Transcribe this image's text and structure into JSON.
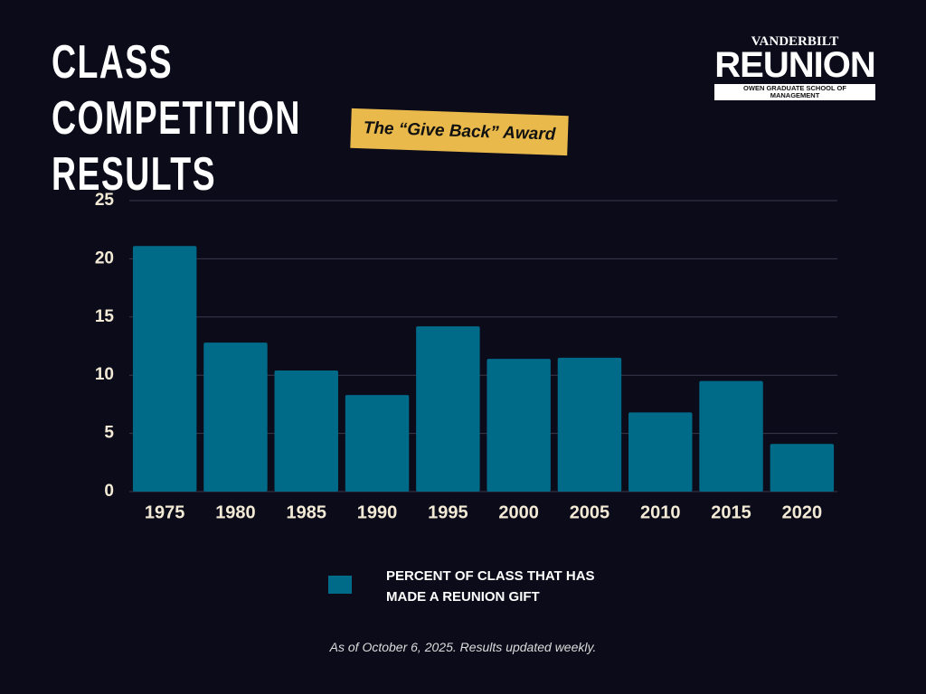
{
  "chart_data": {
    "type": "bar",
    "title": "CLASS COMPETITION RESULTS",
    "subtitle": "The “Give Back” Award",
    "note": "As of October 6, 2025. Results updated weekly.",
    "categories": [
      "1975",
      "1980",
      "1985",
      "1990",
      "1995",
      "2000",
      "2005",
      "2010",
      "2015",
      "2020"
    ],
    "series": [
      {
        "name": "PERCENT OF CLASS THAT HAS MADE A REUNION GIFT",
        "color": "#006a89",
        "values": [
          21.1,
          12.8,
          10.4,
          8.3,
          14.2,
          11.4,
          11.5,
          6.8,
          9.5,
          4.1
        ]
      }
    ],
    "ylim": [
      0,
      25
    ],
    "yticks": [
      0,
      5,
      10,
      15,
      20,
      25
    ],
    "grid": true
  },
  "logo": {
    "top": "VANDERBILT",
    "main": "REUNION",
    "school": "OWEN GRADUATE SCHOOL OF MANAGEMENT"
  }
}
